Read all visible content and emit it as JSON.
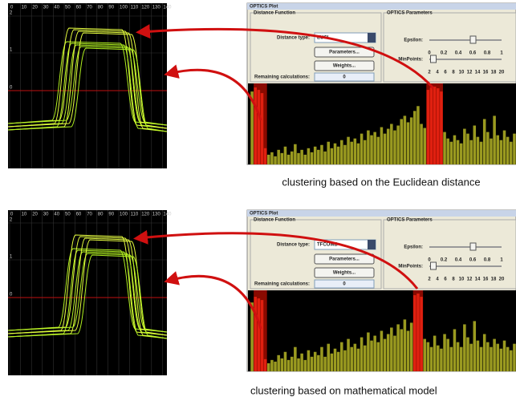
{
  "panels": [
    {
      "plot": {
        "xticks": [
          "0",
          "10",
          "20",
          "30",
          "40",
          "50",
          "60",
          "70",
          "80",
          "90",
          "100",
          "110",
          "120",
          "130",
          "140"
        ],
        "yticks": [
          "2",
          "1",
          "0"
        ]
      },
      "window": {
        "title": "OPTICS Plot",
        "distance_group": "Distance Function",
        "distance_type_label": "Distance type:",
        "distance_type": "EUCL",
        "parameters_button": "Parameters...",
        "weights_button": "Weights...",
        "remaining_label": "Remaining calculations:",
        "remaining_value": "0",
        "optics_group": "OPTICS Parameters",
        "epsilon_label": "Epsilon:",
        "epsilon_ticks": [
          "0",
          "0.2",
          "0.4",
          "0.6",
          "0.8",
          "1"
        ],
        "minpoints_label": "MinPoints:",
        "minpoints_ticks": [
          "2",
          "4",
          "6",
          "8",
          "10",
          "12",
          "14",
          "16",
          "18",
          "20"
        ],
        "reachability": [
          90,
          95,
          92,
          88,
          20,
          12,
          15,
          10,
          18,
          14,
          22,
          12,
          16,
          25,
          14,
          18,
          12,
          20,
          15,
          22,
          18,
          24,
          16,
          28,
          20,
          26,
          22,
          30,
          24,
          34,
          28,
          32,
          26,
          38,
          30,
          42,
          36,
          40,
          34,
          46,
          38,
          44,
          50,
          42,
          48,
          56,
          60,
          52,
          58,
          66,
          72,
          50,
          45,
          92,
          95,
          96,
          94,
          90,
          40,
          32,
          28,
          36,
          30,
          26,
          44,
          38,
          30,
          48,
          34,
          28,
          56,
          40,
          32,
          60,
          36,
          30,
          42,
          34,
          28,
          38
        ],
        "clusters": [
          [
            1,
            4
          ],
          [
            53,
            57
          ]
        ]
      },
      "caption": "clustering based on the Euclidean distance"
    },
    {
      "plot": {
        "xticks": [
          "0",
          "10",
          "20",
          "30",
          "40",
          "50",
          "60",
          "70",
          "80",
          "90",
          "100",
          "110",
          "120",
          "130",
          "140"
        ],
        "yticks": [
          "2",
          "1",
          "0"
        ]
      },
      "window": {
        "title": "OPTICS Plot",
        "distance_group": "Distance Function",
        "distance_type_label": "Distance type:",
        "distance_type": "TFCOMB",
        "parameters_button": "Parameters...",
        "weights_button": "Weights...",
        "remaining_label": "Remaining calculations:",
        "remaining_value": "0",
        "optics_group": "OPTICS Parameters",
        "epsilon_label": "Epsilon:",
        "epsilon_ticks": [
          "0",
          "0.2",
          "0.4",
          "0.6",
          "0.8",
          "1"
        ],
        "minpoints_label": "MinPoints:",
        "minpoints_ticks": [
          "2",
          "4",
          "6",
          "8",
          "10",
          "12",
          "14",
          "16",
          "18",
          "20"
        ],
        "reachability": [
          85,
          92,
          90,
          88,
          15,
          10,
          14,
          12,
          20,
          16,
          24,
          14,
          18,
          30,
          16,
          22,
          14,
          26,
          18,
          24,
          20,
          30,
          18,
          34,
          22,
          28,
          24,
          36,
          26,
          40,
          30,
          34,
          28,
          42,
          32,
          48,
          38,
          44,
          36,
          50,
          40,
          46,
          54,
          44,
          58,
          52,
          64,
          50,
          60,
          94,
          96,
          92,
          40,
          36,
          30,
          44,
          32,
          28,
          46,
          40,
          30,
          52,
          36,
          30,
          58,
          42,
          34,
          62,
          38,
          30,
          46,
          36,
          30,
          40,
          34,
          28,
          38,
          30,
          26,
          34
        ],
        "clusters": [
          [
            1,
            4
          ],
          [
            49,
            51
          ]
        ]
      },
      "caption": "clustering based on mathematical model"
    }
  ]
}
